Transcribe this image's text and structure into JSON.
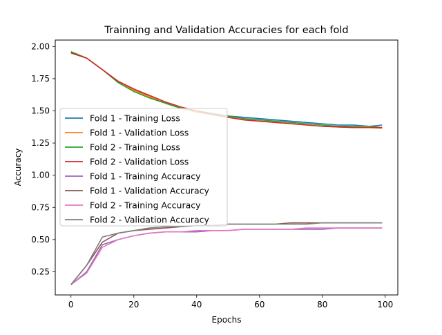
{
  "chart_data": {
    "type": "line",
    "title": "Trainning and Validation Accuracies for each fold",
    "xlabel": "Epochs",
    "ylabel": "Accuracy",
    "xlim": [
      -5,
      104
    ],
    "ylim": [
      0.07,
      2.05
    ],
    "xticks": [
      0,
      20,
      40,
      60,
      80,
      100
    ],
    "yticks": [
      0.25,
      0.5,
      0.75,
      1.0,
      1.25,
      1.5,
      1.75,
      2.0
    ],
    "ytick_labels": [
      "0.25",
      "0.50",
      "0.75",
      "1.00",
      "1.25",
      "1.50",
      "1.75",
      "2.00"
    ],
    "grid": false,
    "legend_position": "center-left",
    "x": [
      0,
      5,
      10,
      15,
      20,
      25,
      30,
      35,
      40,
      45,
      50,
      55,
      60,
      65,
      70,
      75,
      80,
      85,
      90,
      95,
      99
    ],
    "series": [
      {
        "name": "Fold 1 - Training Loss",
        "color": "#1f77b4",
        "values": [
          1.95,
          1.91,
          1.82,
          1.73,
          1.67,
          1.61,
          1.56,
          1.52,
          1.5,
          1.48,
          1.46,
          1.45,
          1.44,
          1.43,
          1.42,
          1.41,
          1.4,
          1.39,
          1.39,
          1.38,
          1.39
        ]
      },
      {
        "name": "Fold 1 - Validation Loss",
        "color": "#ff7f0e",
        "values": [
          1.95,
          1.91,
          1.82,
          1.73,
          1.66,
          1.61,
          1.56,
          1.52,
          1.49,
          1.47,
          1.45,
          1.43,
          1.42,
          1.41,
          1.4,
          1.39,
          1.38,
          1.375,
          1.37,
          1.37,
          1.365
        ]
      },
      {
        "name": "Fold 2 - Training Loss",
        "color": "#2ca02c",
        "values": [
          1.96,
          1.91,
          1.82,
          1.72,
          1.65,
          1.6,
          1.56,
          1.52,
          1.5,
          1.48,
          1.46,
          1.44,
          1.43,
          1.42,
          1.41,
          1.4,
          1.39,
          1.38,
          1.38,
          1.38,
          1.37
        ]
      },
      {
        "name": "Fold 2 - Validation Loss",
        "color": "#d62728",
        "values": [
          1.95,
          1.91,
          1.82,
          1.73,
          1.67,
          1.62,
          1.57,
          1.53,
          1.5,
          1.47,
          1.45,
          1.43,
          1.42,
          1.41,
          1.4,
          1.39,
          1.38,
          1.375,
          1.37,
          1.37,
          1.37
        ]
      },
      {
        "name": "Fold 1 - Training Accuracy",
        "color": "#9467bd",
        "values": [
          0.15,
          0.25,
          0.46,
          0.5,
          0.53,
          0.55,
          0.56,
          0.56,
          0.56,
          0.57,
          0.57,
          0.58,
          0.58,
          0.58,
          0.58,
          0.58,
          0.58,
          0.59,
          0.59,
          0.59,
          0.59
        ]
      },
      {
        "name": "Fold 1 - Validation Accuracy",
        "color": "#8c564b",
        "values": [
          0.15,
          0.3,
          0.48,
          0.55,
          0.57,
          0.58,
          0.59,
          0.6,
          0.61,
          0.61,
          0.62,
          0.62,
          0.62,
          0.62,
          0.63,
          0.63,
          0.63,
          0.63,
          0.63,
          0.63,
          0.63
        ]
      },
      {
        "name": "Fold 2 - Training Accuracy",
        "color": "#e377c2",
        "values": [
          0.15,
          0.24,
          0.44,
          0.5,
          0.53,
          0.55,
          0.56,
          0.56,
          0.57,
          0.57,
          0.57,
          0.58,
          0.58,
          0.58,
          0.58,
          0.59,
          0.59,
          0.59,
          0.59,
          0.59,
          0.59
        ]
      },
      {
        "name": "Fold 2 - Validation Accuracy",
        "color": "#7f7f7f",
        "values": [
          0.15,
          0.3,
          0.52,
          0.55,
          0.57,
          0.59,
          0.6,
          0.6,
          0.61,
          0.61,
          0.62,
          0.62,
          0.62,
          0.62,
          0.62,
          0.62,
          0.63,
          0.63,
          0.63,
          0.63,
          0.63
        ]
      }
    ]
  }
}
